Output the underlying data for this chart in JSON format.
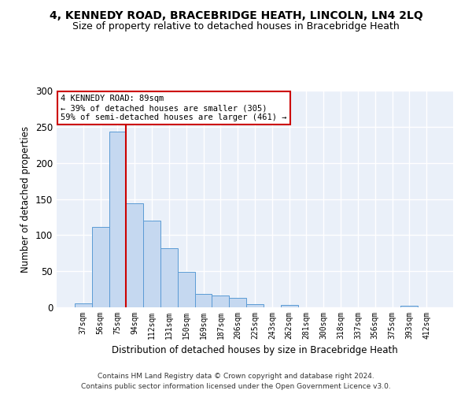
{
  "title": "4, KENNEDY ROAD, BRACEBRIDGE HEATH, LINCOLN, LN4 2LQ",
  "subtitle": "Size of property relative to detached houses in Bracebridge Heath",
  "xlabel": "Distribution of detached houses by size in Bracebridge Heath",
  "ylabel": "Number of detached properties",
  "footer_line1": "Contains HM Land Registry data © Crown copyright and database right 2024.",
  "footer_line2": "Contains public sector information licensed under the Open Government Licence v3.0.",
  "bar_labels": [
    "37sqm",
    "56sqm",
    "75sqm",
    "94sqm",
    "112sqm",
    "131sqm",
    "150sqm",
    "169sqm",
    "187sqm",
    "206sqm",
    "225sqm",
    "243sqm",
    "262sqm",
    "281sqm",
    "300sqm",
    "318sqm",
    "337sqm",
    "356sqm",
    "375sqm",
    "393sqm",
    "412sqm"
  ],
  "bar_values": [
    6,
    111,
    243,
    144,
    120,
    82,
    49,
    19,
    16,
    13,
    4,
    0,
    3,
    0,
    0,
    0,
    0,
    0,
    0,
    2,
    0
  ],
  "bar_color": "#c5d8f0",
  "bar_edge_color": "#5b9bd5",
  "vline_color": "#cc0000",
  "annotation_line1": "4 KENNEDY ROAD: 89sqm",
  "annotation_line2": "← 39% of detached houses are smaller (305)",
  "annotation_line3": "59% of semi-detached houses are larger (461) →",
  "annotation_box_color": "#ffffff",
  "annotation_box_edge_color": "#cc0000",
  "ylim": [
    0,
    300
  ],
  "yticks": [
    0,
    50,
    100,
    150,
    200,
    250,
    300
  ],
  "plot_bg_color": "#eaf0f9",
  "title_fontsize": 10,
  "subtitle_fontsize": 9,
  "xlabel_fontsize": 8.5,
  "ylabel_fontsize": 8.5,
  "annotation_fontsize": 7.5
}
